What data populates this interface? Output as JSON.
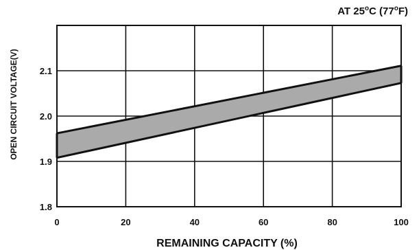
{
  "chart_data": {
    "type": "area",
    "annotation": {
      "prefix": "AT 25",
      "deg1": "o",
      "mid": "C (77",
      "deg2": "o",
      "suffix": "F)"
    },
    "xlabel": "REMAINING CAPACITY (%)",
    "ylabel": "OPEN CIRCUIT VOLTAGE(V)",
    "xlim": [
      0,
      100
    ],
    "ylim": [
      1.8,
      2.2
    ],
    "x_ticks": [
      0,
      20,
      40,
      60,
      80,
      100
    ],
    "x_tick_labels": [
      "0",
      "20",
      "40",
      "60",
      "80",
      "100"
    ],
    "y_ticks": [
      1.8,
      1.9,
      2.0,
      2.1
    ],
    "y_tick_labels": [
      "1.8",
      "1.9",
      "2.0",
      "2.1"
    ],
    "grid": true,
    "band": {
      "x": [
        0,
        100
      ],
      "upper": [
        1.962,
        2.111
      ],
      "lower": [
        1.908,
        2.073
      ],
      "fill": "#aaaaaa",
      "stroke": "#111111"
    }
  }
}
